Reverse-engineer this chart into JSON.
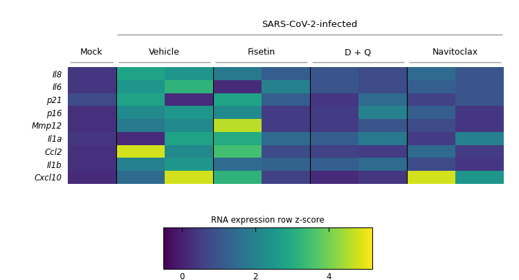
{
  "genes": [
    "Il8",
    "Il6",
    "p21",
    "p16",
    "Mmp12",
    "Il1a",
    "Ccl2",
    "Il1b",
    "Cxcl10"
  ],
  "group_order": [
    "Mock",
    "Vehicle",
    "Fisetin",
    "D + Q",
    "Navitoclax"
  ],
  "group_ncols": [
    1,
    2,
    2,
    2,
    2
  ],
  "sars_groups": [
    "Vehicle",
    "Fisetin",
    "D + Q",
    "Navitoclax"
  ],
  "heatmap": [
    [
      0.4,
      2.8,
      2.5,
      1.8,
      1.2,
      1.0,
      0.8,
      1.5,
      1.0
    ],
    [
      0.4,
      2.5,
      3.2,
      0.2,
      2.0,
      1.0,
      0.8,
      1.2,
      1.0
    ],
    [
      0.8,
      2.8,
      0.2,
      2.8,
      1.2,
      0.4,
      1.5,
      0.6,
      1.0
    ],
    [
      0.3,
      2.2,
      2.5,
      2.2,
      0.5,
      0.5,
      2.0,
      1.2,
      0.4
    ],
    [
      0.3,
      1.8,
      2.2,
      4.6,
      0.5,
      0.5,
      1.0,
      0.8,
      0.4
    ],
    [
      0.4,
      0.2,
      2.8,
      3.0,
      1.5,
      1.2,
      1.8,
      0.5,
      2.0
    ],
    [
      0.3,
      4.8,
      2.2,
      3.5,
      0.8,
      0.6,
      0.5,
      1.5,
      0.5
    ],
    [
      0.3,
      2.0,
      2.5,
      1.5,
      1.3,
      1.2,
      1.5,
      0.8,
      0.4
    ],
    [
      0.2,
      1.5,
      4.8,
      3.2,
      0.6,
      0.2,
      0.4,
      4.8,
      2.5
    ]
  ],
  "colorbar_label": "RNA expression row z-score",
  "colorbar_ticks": [
    0,
    2,
    4
  ],
  "vmin": -0.5,
  "vmax": 5.2,
  "cmap": "viridis",
  "divider_color": "black",
  "divider_lw": 0.8,
  "line_color": "#999999",
  "line_lw": 1.0
}
